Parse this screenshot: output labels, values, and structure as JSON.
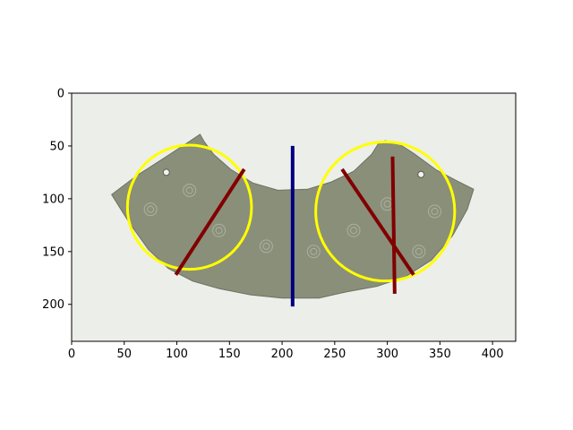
{
  "chart_data": {
    "type": "image-annotation",
    "title": "",
    "xlabel": "",
    "ylabel": "",
    "xlim": [
      0,
      422
    ],
    "ylim": [
      235,
      0
    ],
    "y_inverted": true,
    "x_ticks": [
      0,
      50,
      100,
      150,
      200,
      250,
      300,
      350,
      400
    ],
    "y_ticks": [
      0,
      50,
      100,
      150,
      200
    ],
    "image": {
      "subject": "arc-shaped jade pendant with spiral carvings and two small holes near the top corners",
      "body_color": "#8a8f7a",
      "background_color": "#eceeea",
      "holes": [
        {
          "x": 90,
          "y": 75
        },
        {
          "x": 332,
          "y": 77
        }
      ]
    },
    "circles": [
      {
        "name": "left circle",
        "cx": 112,
        "cy": 108,
        "r": 59,
        "color": "#ffff00"
      },
      {
        "name": "right circle",
        "cx": 298,
        "cy": 112,
        "r": 66,
        "color": "#ffff00"
      }
    ],
    "lines": [
      {
        "name": "center vertical line",
        "x1": 210,
        "y1": 50,
        "x2": 210,
        "y2": 202,
        "color": "#000080"
      },
      {
        "name": "left diagonal",
        "x1": 99,
        "y1": 172,
        "x2": 164,
        "y2": 72,
        "color": "#800000"
      },
      {
        "name": "right diagonal",
        "x1": 257,
        "y1": 72,
        "x2": 325,
        "y2": 172,
        "color": "#800000"
      },
      {
        "name": "right vertical line",
        "x1": 305,
        "y1": 60,
        "x2": 307,
        "y2": 190,
        "color": "#800000"
      }
    ]
  }
}
